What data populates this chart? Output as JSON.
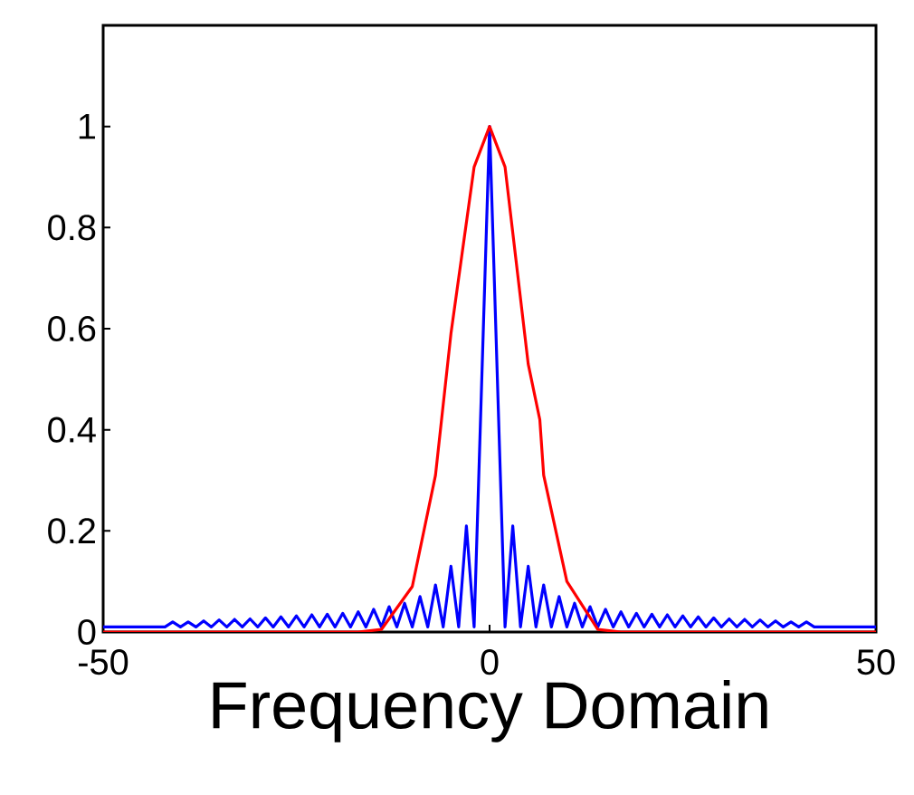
{
  "chart_data": {
    "type": "line",
    "xlabel": "Frequency Domain",
    "xlim": [
      -50,
      50
    ],
    "xticks": [
      -50,
      0,
      50
    ],
    "ylim": [
      0,
      1.2
    ],
    "yticks": [
      0,
      0.2,
      0.4,
      0.6,
      0.8,
      1
    ],
    "grid": false,
    "series": [
      {
        "color": "#0000ff",
        "x": [
          -50,
          -42,
          -41,
          -40,
          -39,
          -38,
          -37,
          -36,
          -35,
          -34,
          -33,
          -32,
          -31,
          -30,
          -29,
          -28,
          -27,
          -26,
          -25,
          -24,
          -23,
          -22,
          -21,
          -20,
          -19,
          -18,
          -17,
          -16,
          -15,
          -14,
          -13,
          -12,
          -11,
          -10,
          -9,
          -8,
          -7,
          -6,
          -5,
          -4,
          -3,
          -2,
          0,
          2,
          3,
          4,
          5,
          6,
          7,
          8,
          9,
          10,
          11,
          12,
          13,
          14,
          15,
          16,
          17,
          18,
          19,
          20,
          21,
          22,
          23,
          24,
          25,
          26,
          27,
          28,
          29,
          30,
          31,
          32,
          33,
          34,
          35,
          36,
          37,
          38,
          39,
          40,
          41,
          42,
          50
        ],
        "values": [
          0.01,
          0.01,
          0.02,
          0.01,
          0.02,
          0.01,
          0.022,
          0.01,
          0.024,
          0.01,
          0.025,
          0.01,
          0.026,
          0.01,
          0.028,
          0.01,
          0.03,
          0.01,
          0.032,
          0.01,
          0.034,
          0.01,
          0.035,
          0.01,
          0.037,
          0.01,
          0.04,
          0.01,
          0.045,
          0.01,
          0.05,
          0.01,
          0.057,
          0.01,
          0.07,
          0.01,
          0.093,
          0.01,
          0.13,
          0.01,
          0.21,
          0.01,
          1,
          0.01,
          0.21,
          0.01,
          0.13,
          0.01,
          0.093,
          0.01,
          0.07,
          0.01,
          0.057,
          0.01,
          0.05,
          0.01,
          0.045,
          0.01,
          0.04,
          0.01,
          0.037,
          0.01,
          0.035,
          0.01,
          0.034,
          0.01,
          0.032,
          0.01,
          0.03,
          0.01,
          0.028,
          0.01,
          0.026,
          0.01,
          0.025,
          0.01,
          0.024,
          0.01,
          0.022,
          0.01,
          0.02,
          0.01,
          0.02,
          0.01,
          0.01
        ]
      },
      {
        "color": "#ff0000",
        "x": [
          -50,
          -17,
          -14,
          -10,
          -7,
          -5,
          -2,
          0,
          2,
          5,
          6.5,
          7,
          10,
          14,
          17,
          50
        ],
        "values": [
          0,
          0,
          0.005,
          0.09,
          0.31,
          0.59,
          0.92,
          1,
          0.92,
          0.53,
          0.42,
          0.31,
          0.1,
          0.005,
          0,
          0
        ]
      }
    ]
  }
}
